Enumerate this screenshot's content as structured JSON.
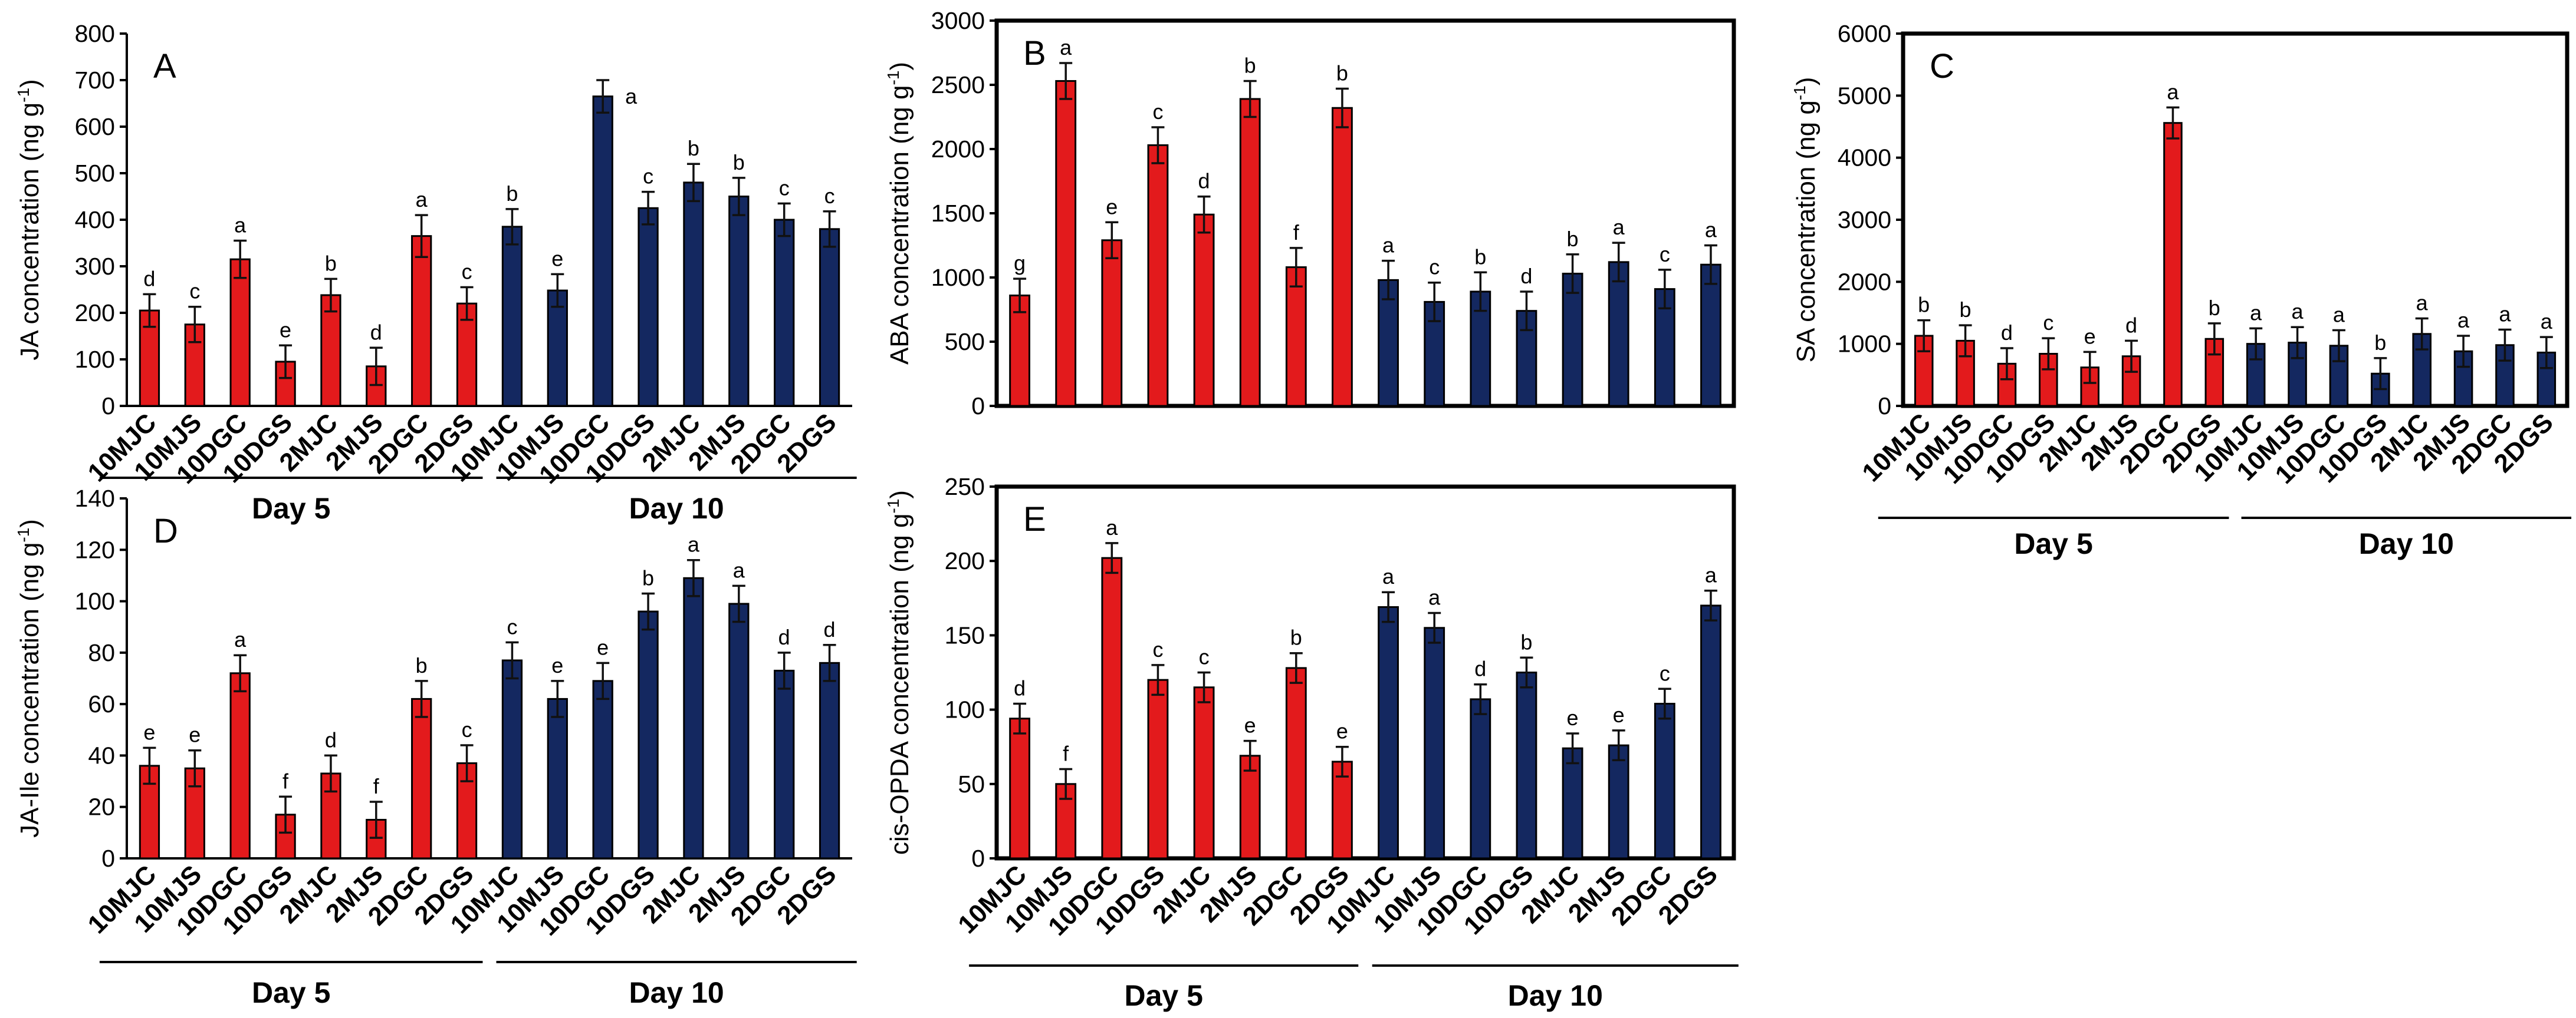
{
  "colors": {
    "day5": "#e31a1c",
    "day10": "#142860"
  },
  "panels": [
    {
      "id": "A",
      "letter": "A",
      "frame": false,
      "y_label_main": "JA concentration (ng g",
      "y_label_sup": "-1",
      "y_label_close": ")",
      "y_ticks": [
        "0",
        "100",
        "200",
        "300",
        "400",
        "500",
        "600",
        "700",
        "800"
      ],
      "groups": [
        "Day 5",
        "Day 10"
      ],
      "chart_data": {
        "type": "bar",
        "title": "A",
        "ylabel": "JA concentration (ng g-1)",
        "ylim": [
          0,
          800
        ],
        "categories": [
          "10MJC",
          "10MJS",
          "10DGC",
          "10DGS",
          "2MJC",
          "2MJS",
          "2DGC",
          "2DGS",
          "10MJC",
          "10MJS",
          "10DGC",
          "10DGS",
          "2MJC",
          "2MJS",
          "2DGC",
          "2DGS"
        ],
        "groups": [
          "Day 5",
          "Day 5",
          "Day 5",
          "Day 5",
          "Day 5",
          "Day 5",
          "Day 5",
          "Day 5",
          "Day 10",
          "Day 10",
          "Day 10",
          "Day 10",
          "Day 10",
          "Day 10",
          "Day 10",
          "Day 10"
        ],
        "values": [
          205,
          175,
          315,
          95,
          238,
          85,
          365,
          220,
          385,
          248,
          665,
          425,
          480,
          450,
          400,
          380
        ],
        "errors": [
          35,
          38,
          40,
          35,
          35,
          40,
          45,
          35,
          38,
          35,
          35,
          35,
          40,
          40,
          35,
          38
        ],
        "letters": [
          "d",
          "c",
          "a",
          "e",
          "b",
          "d",
          "a",
          "c",
          "b",
          "e",
          "a",
          "c",
          "b",
          "b",
          "c",
          "c"
        ]
      }
    },
    {
      "id": "B",
      "letter": "B",
      "frame": true,
      "y_label_main": "ABA concentration (ng g",
      "y_label_sup": "-1",
      "y_label_close": ")",
      "y_ticks": [
        "0",
        "500",
        "1000",
        "1500",
        "2000",
        "2500",
        "3000"
      ],
      "groups": [],
      "chart_data": {
        "type": "bar",
        "title": "B",
        "ylabel": "ABA concentration (ng g-1)",
        "ylim": [
          0,
          3000
        ],
        "categories": [
          "10MJC",
          "10MJS",
          "10DGC",
          "10DGS",
          "2MJC",
          "2MJS",
          "2DGC",
          "2DGS",
          "10MJC",
          "10MJS",
          "10DGC",
          "10DGS",
          "2MJC",
          "2MJS",
          "2DGC",
          "2DGS"
        ],
        "groups": [
          "Day 5",
          "Day 5",
          "Day 5",
          "Day 5",
          "Day 5",
          "Day 5",
          "Day 5",
          "Day 5",
          "Day 10",
          "Day 10",
          "Day 10",
          "Day 10",
          "Day 10",
          "Day 10",
          "Day 10",
          "Day 10"
        ],
        "values": [
          860,
          2530,
          1290,
          2030,
          1490,
          2390,
          1080,
          2320,
          980,
          810,
          890,
          740,
          1030,
          1120,
          910,
          1100
        ],
        "errors": [
          130,
          140,
          140,
          140,
          140,
          140,
          150,
          150,
          150,
          150,
          150,
          150,
          150,
          150,
          150,
          150
        ],
        "letters": [
          "g",
          "a",
          "e",
          "c",
          "d",
          "b",
          "f",
          "b",
          "a",
          "c",
          "b",
          "d",
          "b",
          "a",
          "c",
          "a"
        ]
      }
    },
    {
      "id": "C",
      "letter": "C",
      "frame": true,
      "y_label_main": "SA concentration (ng g",
      "y_label_sup": "-1",
      "y_label_close": ")",
      "y_ticks": [
        "0",
        "1000",
        "2000",
        "3000",
        "4000",
        "5000",
        "6000"
      ],
      "groups": [
        "Day 5",
        "Day 10"
      ],
      "chart_data": {
        "type": "bar",
        "title": "C",
        "ylabel": "SA concentration (ng g-1)",
        "ylim": [
          0,
          6000
        ],
        "categories": [
          "10MJC",
          "10MJS",
          "10DGC",
          "10DGS",
          "2MJC",
          "2MJS",
          "2DGC",
          "2DGS",
          "10MJC",
          "10MJS",
          "10DGC",
          "10DGS",
          "2MJC",
          "2MJS",
          "2DGC",
          "2DGS"
        ],
        "groups": [
          "Day 5",
          "Day 5",
          "Day 5",
          "Day 5",
          "Day 5",
          "Day 5",
          "Day 5",
          "Day 5",
          "Day 10",
          "Day 10",
          "Day 10",
          "Day 10",
          "Day 10",
          "Day 10",
          "Day 10",
          "Day 10"
        ],
        "values": [
          1130,
          1050,
          680,
          840,
          620,
          800,
          4560,
          1080,
          1000,
          1020,
          970,
          520,
          1160,
          880,
          980,
          860
        ],
        "errors": [
          250,
          250,
          250,
          250,
          250,
          250,
          250,
          250,
          250,
          250,
          250,
          250,
          250,
          250,
          250,
          250
        ],
        "letters": [
          "b",
          "b",
          "d",
          "c",
          "e",
          "d",
          "a",
          "b",
          "a",
          "a",
          "a",
          "b",
          "a",
          "a",
          "a",
          "a"
        ]
      }
    },
    {
      "id": "D",
      "letter": "D",
      "frame": false,
      "y_label_main": "JA-Ile concentration (ng g",
      "y_label_sup": "-1",
      "y_label_close": ")",
      "y_ticks": [
        "0",
        "20",
        "40",
        "60",
        "80",
        "100",
        "120",
        "140"
      ],
      "groups": [
        "Day 5",
        "Day 10"
      ],
      "chart_data": {
        "type": "bar",
        "title": "D",
        "ylabel": "JA-Ile concentration (ng g-1)",
        "ylim": [
          0,
          140
        ],
        "categories": [
          "10MJC",
          "10MJS",
          "10DGC",
          "10DGS",
          "2MJC",
          "2MJS",
          "2DGC",
          "2DGS",
          "10MJC",
          "10MJS",
          "10DGC",
          "10DGS",
          "2MJC",
          "2MJS",
          "2DGC",
          "2DGS"
        ],
        "groups": [
          "Day 5",
          "Day 5",
          "Day 5",
          "Day 5",
          "Day 5",
          "Day 5",
          "Day 5",
          "Day 5",
          "Day 10",
          "Day 10",
          "Day 10",
          "Day 10",
          "Day 10",
          "Day 10",
          "Day 10",
          "Day 10"
        ],
        "values": [
          36,
          35,
          72,
          17,
          33,
          15,
          62,
          37,
          77,
          62,
          69,
          96,
          109,
          99,
          73,
          76
        ],
        "errors": [
          7,
          7,
          7,
          7,
          7,
          7,
          7,
          7,
          7,
          7,
          7,
          7,
          7,
          7,
          7,
          7
        ],
        "letters": [
          "e",
          "e",
          "a",
          "f",
          "d",
          "f",
          "b",
          "c",
          "c",
          "e",
          "e",
          "b",
          "a",
          "a",
          "d",
          "d"
        ]
      }
    },
    {
      "id": "E",
      "letter": "E",
      "frame": true,
      "y_label_main": "cis-OPDA concentration (ng g",
      "y_label_sup": "-1",
      "y_label_close": ")",
      "y_ticks": [
        "0",
        "50",
        "100",
        "150",
        "200",
        "250"
      ],
      "groups": [
        "Day 5",
        "Day 10"
      ],
      "chart_data": {
        "type": "bar",
        "title": "E",
        "ylabel": "cis-OPDA concentration (ng g-1)",
        "ylim": [
          0,
          250
        ],
        "categories": [
          "10MJC",
          "10MJS",
          "10DGC",
          "10DGS",
          "2MJC",
          "2MJS",
          "2DGC",
          "2DGS",
          "10MJC",
          "10MJS",
          "10DGC",
          "10DGS",
          "2MJC",
          "2MJS",
          "2DGC",
          "2DGS"
        ],
        "groups": [
          "Day 5",
          "Day 5",
          "Day 5",
          "Day 5",
          "Day 5",
          "Day 5",
          "Day 5",
          "Day 5",
          "Day 10",
          "Day 10",
          "Day 10",
          "Day 10",
          "Day 10",
          "Day 10",
          "Day 10",
          "Day 10"
        ],
        "values": [
          94,
          50,
          202,
          120,
          115,
          69,
          128,
          65,
          169,
          155,
          107,
          125,
          74,
          76,
          104,
          170
        ],
        "errors": [
          10,
          10,
          10,
          10,
          10,
          10,
          10,
          10,
          10,
          10,
          10,
          10,
          10,
          10,
          10,
          10
        ],
        "letters": [
          "d",
          "f",
          "a",
          "c",
          "c",
          "e",
          "b",
          "e",
          "a",
          "a",
          "d",
          "b",
          "e",
          "e",
          "c",
          "a"
        ]
      }
    }
  ]
}
